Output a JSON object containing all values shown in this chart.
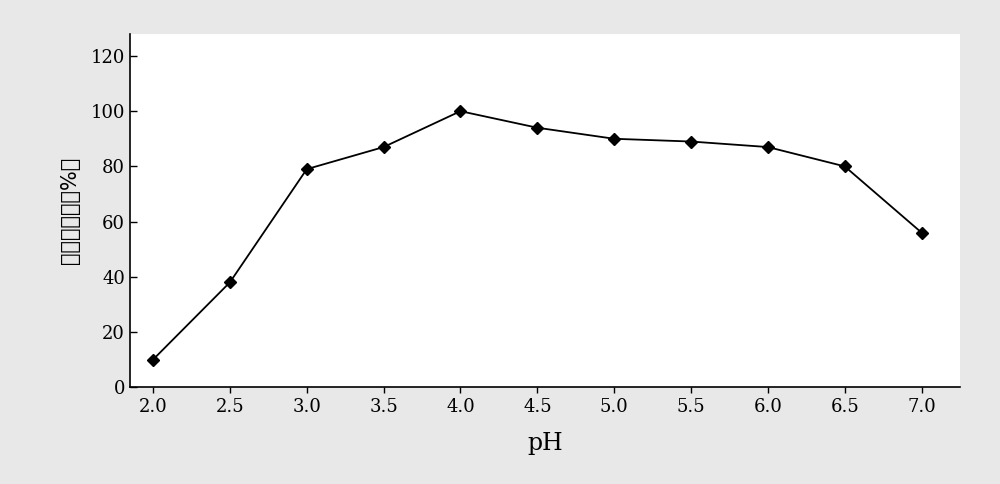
{
  "x": [
    2.0,
    2.5,
    3.0,
    3.5,
    4.0,
    4.5,
    5.0,
    5.5,
    6.0,
    6.5,
    7.0
  ],
  "y": [
    10,
    38,
    79,
    87,
    100,
    94,
    90,
    89,
    87,
    80,
    56
  ],
  "xlabel": "pH",
  "ylabel": "相对酶活力（%）",
  "xlim": [
    1.85,
    7.25
  ],
  "ylim": [
    0,
    128
  ],
  "xticks": [
    2.0,
    2.5,
    3.0,
    3.5,
    4.0,
    4.5,
    5.0,
    5.5,
    6.0,
    6.5,
    7.0
  ],
  "yticks": [
    0,
    20,
    40,
    60,
    80,
    100,
    120
  ],
  "line_color": "#000000",
  "marker": "D",
  "marker_size": 6,
  "line_width": 1.3,
  "background_color": "#ffffff",
  "figure_facecolor": "#e8e8e8",
  "xlabel_fontsize": 17,
  "ylabel_fontsize": 15,
  "tick_fontsize": 13
}
